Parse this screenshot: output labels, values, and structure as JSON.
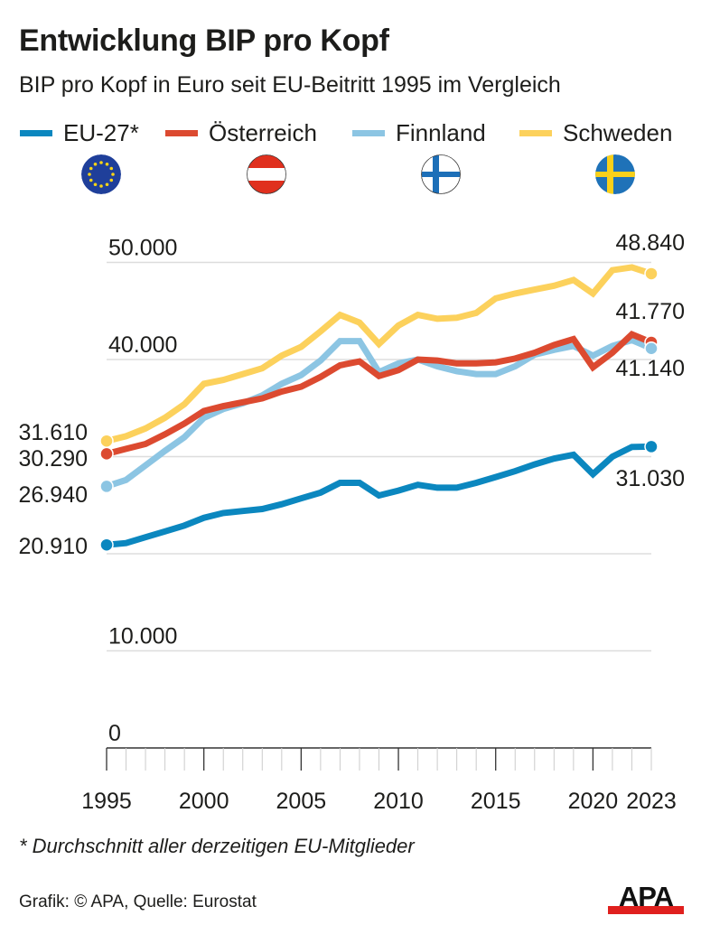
{
  "header": {
    "title": "Entwicklung BIP pro Kopf",
    "subtitle": "BIP pro Kopf in Euro seit EU-Beitritt 1995 im Vergleich"
  },
  "legend": [
    {
      "label": "EU-27*",
      "color": "#0b87bf",
      "flag": "eu-flag-icon"
    },
    {
      "label": "Österreich",
      "color": "#dc4a30",
      "flag": "austria-flag-icon"
    },
    {
      "label": "Finnland",
      "color": "#8cc5e3",
      "flag": "finland-flag-icon"
    },
    {
      "label": "Schweden",
      "color": "#fcd15c",
      "flag": "sweden-flag-icon"
    }
  ],
  "chart_data": {
    "type": "line",
    "title": "Entwicklung BIP pro Kopf",
    "subtitle": "BIP pro Kopf in Euro seit EU-Beitritt 1995 im Vergleich",
    "xlabel": "",
    "ylabel": "",
    "x": [
      1995,
      1996,
      1997,
      1998,
      1999,
      2000,
      2001,
      2002,
      2003,
      2004,
      2005,
      2006,
      2007,
      2008,
      2009,
      2010,
      2011,
      2012,
      2013,
      2014,
      2015,
      2016,
      2017,
      2018,
      2019,
      2020,
      2021,
      2022,
      2023
    ],
    "xlim": [
      1995,
      2023
    ],
    "ylim": [
      0,
      50000
    ],
    "x_tick_labels": [
      "1995",
      "2000",
      "2005",
      "2010",
      "2015",
      "2020",
      "2023"
    ],
    "x_tick_years": [
      1995,
      2000,
      2005,
      2010,
      2015,
      2020,
      2023
    ],
    "y_tick_labels": [
      {
        "value": 0,
        "label": "0"
      },
      {
        "value": 10000,
        "label": "10.000"
      },
      {
        "value": 40000,
        "label": "40.000"
      },
      {
        "value": 50000,
        "label": "50.000"
      }
    ],
    "y_gridlines": [
      0,
      10000,
      20000,
      30000,
      40000,
      50000
    ],
    "grid": true,
    "legend_position": "top",
    "series": [
      {
        "name": "EU-27*",
        "color": "#0b87bf",
        "values": [
          20910,
          21100,
          21700,
          22300,
          22900,
          23700,
          24200,
          24400,
          24600,
          25100,
          25700,
          26300,
          27300,
          27300,
          26000,
          26500,
          27100,
          26800,
          26800,
          27300,
          27900,
          28500,
          29200,
          29800,
          30200,
          28200,
          30000,
          31000,
          31030
        ],
        "start_label": "20.910",
        "end_label": "31.030"
      },
      {
        "name": "Österreich",
        "color": "#dc4a30",
        "values": [
          30290,
          30800,
          31300,
          32300,
          33400,
          34700,
          35200,
          35600,
          36000,
          36700,
          37200,
          38200,
          39400,
          39800,
          38300,
          38900,
          40000,
          39900,
          39600,
          39600,
          39700,
          40100,
          40700,
          41500,
          42100,
          39200,
          40700,
          42600,
          41770
        ],
        "start_label": "30.290",
        "end_label": "41.770"
      },
      {
        "name": "Finnland",
        "color": "#8cc5e3",
        "values": [
          26940,
          27600,
          29100,
          30600,
          32000,
          34000,
          34900,
          35500,
          36300,
          37500,
          38400,
          39900,
          41900,
          41900,
          38700,
          39600,
          40000,
          39300,
          38800,
          38500,
          38500,
          39300,
          40500,
          41000,
          41400,
          40400,
          41400,
          42000,
          41140
        ],
        "start_label": "26.940",
        "end_label": "41.140"
      },
      {
        "name": "Schweden",
        "color": "#fcd15c",
        "values": [
          31610,
          32100,
          32900,
          34000,
          35400,
          37500,
          37900,
          38500,
          39100,
          40400,
          41300,
          42900,
          44600,
          43800,
          41600,
          43500,
          44600,
          44200,
          44300,
          44800,
          46300,
          46800,
          47200,
          47600,
          48200,
          46800,
          49200,
          49500,
          48840
        ],
        "start_label": "31.610",
        "end_label": "48.840"
      }
    ],
    "annotations": []
  },
  "footer": {
    "footnote": "* Durchschnitt aller derzeitigen EU-Mitglieder",
    "source": "Grafik: © APA, Quelle: Eurostat",
    "logo_text": "APA"
  }
}
